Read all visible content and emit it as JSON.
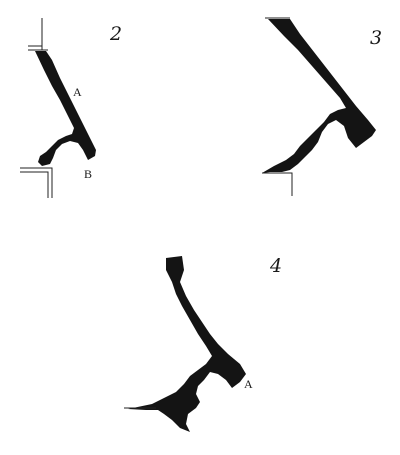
{
  "figures": [
    {
      "number": "2",
      "labels": [
        "A",
        "B"
      ]
    },
    {
      "number": "3",
      "labels": []
    },
    {
      "number": "4",
      "labels": [
        "A"
      ]
    }
  ],
  "colors": {
    "ink": "#141414",
    "paper": "#ffffff"
  }
}
